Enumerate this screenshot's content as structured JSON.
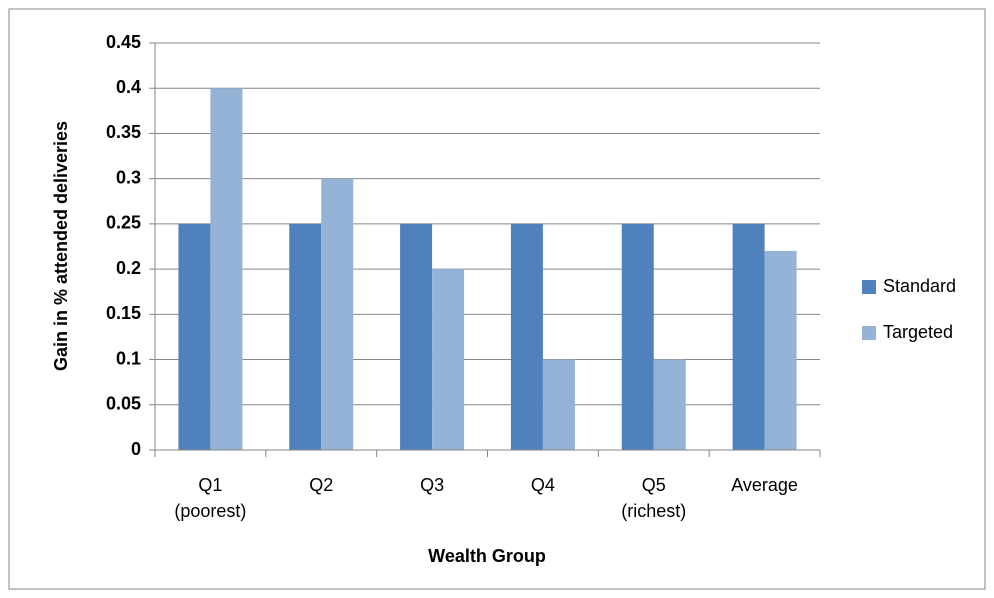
{
  "chart_data": {
    "type": "bar",
    "x_label": "Wealth Group",
    "y_label": "Gain in % attended deliveries",
    "categories": [
      "Q1\n(poorest)",
      "Q2",
      "Q3",
      "Q4",
      "Q5\n(richest)",
      "Average"
    ],
    "series": [
      {
        "name": "Standard",
        "color": "#4f81bd",
        "values": [
          0.25,
          0.25,
          0.25,
          0.25,
          0.25,
          0.25
        ]
      },
      {
        "name": "Targeted",
        "color": "#95b3d7",
        "values": [
          0.4,
          0.3,
          0.2,
          0.1,
          0.1,
          0.22
        ]
      }
    ],
    "ylim": [
      0,
      0.45
    ],
    "yticks": [
      0,
      0.05,
      0.1,
      0.15,
      0.2,
      0.25,
      0.3,
      0.35,
      0.4,
      0.45
    ],
    "grid": true,
    "legend": "right"
  }
}
